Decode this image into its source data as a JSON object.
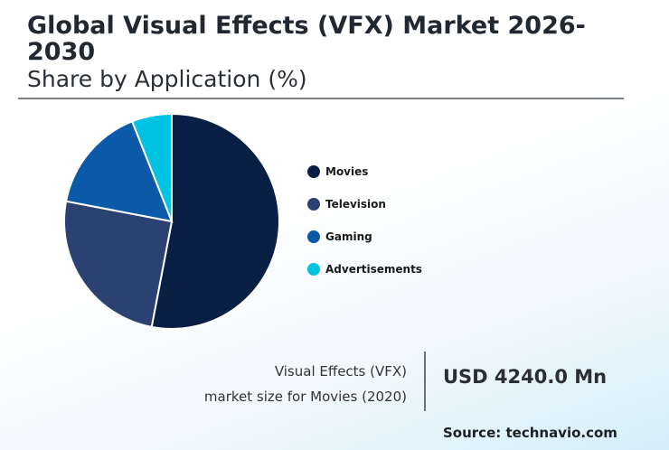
{
  "title": "Global Visual Effects (VFX) Market 2026-2030",
  "subtitle": "Share by Application (%)",
  "chart_data": {
    "type": "pie",
    "categories": [
      "Movies",
      "Television",
      "Gaming",
      "Advertisements"
    ],
    "values": [
      53,
      25,
      16,
      6
    ],
    "colors": [
      "#0a1f44",
      "#2a4171",
      "#0a5aa8",
      "#00c3e3"
    ],
    "legend_position": "right"
  },
  "legend": [
    {
      "label": "Movies",
      "color": "#0a1f44"
    },
    {
      "label": "Television",
      "color": "#2a4171"
    },
    {
      "label": "Gaming",
      "color": "#0a5aa8"
    },
    {
      "label": "Advertisements",
      "color": "#00c3e3"
    }
  ],
  "caption": {
    "line1": "Visual Effects (VFX)",
    "line2": "market size for Movies (2020)"
  },
  "market_value": "USD 4240.0 Mn",
  "source": "Source: technavio.com"
}
